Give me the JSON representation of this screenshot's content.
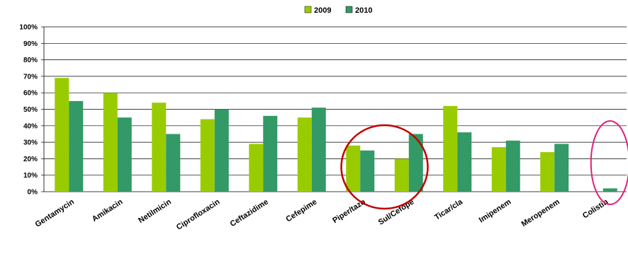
{
  "chart_data": {
    "type": "bar",
    "categories": [
      "Gentamycin",
      "Amikacin",
      "Netilmicin",
      "Ciprofloxacin",
      "Ceftazidime",
      "Cefepime",
      "Piper/tazo",
      "Sul/Cefope",
      "Ticar/cla",
      "Imipenem",
      "Meropenem",
      "Colistin"
    ],
    "series": [
      {
        "name": "2009",
        "color": "#99cc00",
        "values": [
          69,
          60,
          54,
          44,
          29,
          45,
          28,
          20,
          52,
          27,
          24,
          0
        ]
      },
      {
        "name": "2010",
        "color": "#339966",
        "values": [
          55,
          45,
          35,
          50,
          46,
          51,
          25,
          35,
          36,
          31,
          29,
          2
        ]
      }
    ],
    "yticks": [
      "0%",
      "10%",
      "20%",
      "30%",
      "40%",
      "50%",
      "60%",
      "70%",
      "80%",
      "90%",
      "100%"
    ],
    "ylim": [
      0,
      100
    ],
    "grid": true,
    "legend": "top-center",
    "annotations": [
      {
        "shape": "ellipse",
        "color": "#c00000",
        "around": [
          "Piper/tazo",
          "Sul/Cefope"
        ]
      },
      {
        "shape": "ellipse",
        "color": "#e0207a",
        "around": [
          "Colistin"
        ]
      }
    ]
  }
}
